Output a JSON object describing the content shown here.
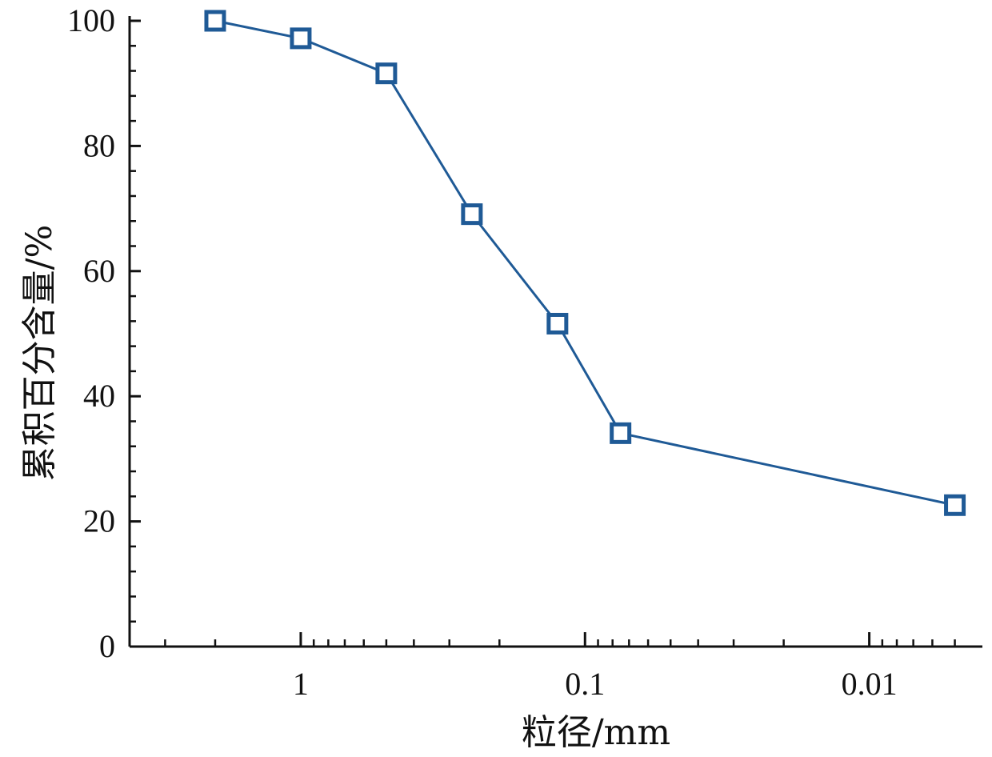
{
  "chart_data": {
    "type": "line",
    "title": "",
    "xlabel": "粒径/mm",
    "ylabel": "累积百分含量/%",
    "x_scale": "log",
    "x_reversed": true,
    "xlim": [
      4,
      0.004
    ],
    "ylim": [
      0,
      100
    ],
    "x_ticks": [
      {
        "value": 1,
        "label": "1"
      },
      {
        "value": 0.1,
        "label": "0.1"
      },
      {
        "value": 0.01,
        "label": "0.01"
      }
    ],
    "y_ticks": [
      {
        "value": 0,
        "label": "0"
      },
      {
        "value": 20,
        "label": "20"
      },
      {
        "value": 40,
        "label": "40"
      },
      {
        "value": 60,
        "label": "60"
      },
      {
        "value": 80,
        "label": "80"
      },
      {
        "value": 100,
        "label": "100"
      }
    ],
    "grid": false,
    "legend": "none",
    "series": [
      {
        "color": "#1f5a96",
        "marker": "open-square",
        "x": [
          2,
          1,
          0.5,
          0.25,
          0.125,
          0.075,
          0.005
        ],
        "y": [
          100,
          97.2,
          91.6,
          69.1,
          51.6,
          34.1,
          22.6
        ]
      }
    ]
  }
}
